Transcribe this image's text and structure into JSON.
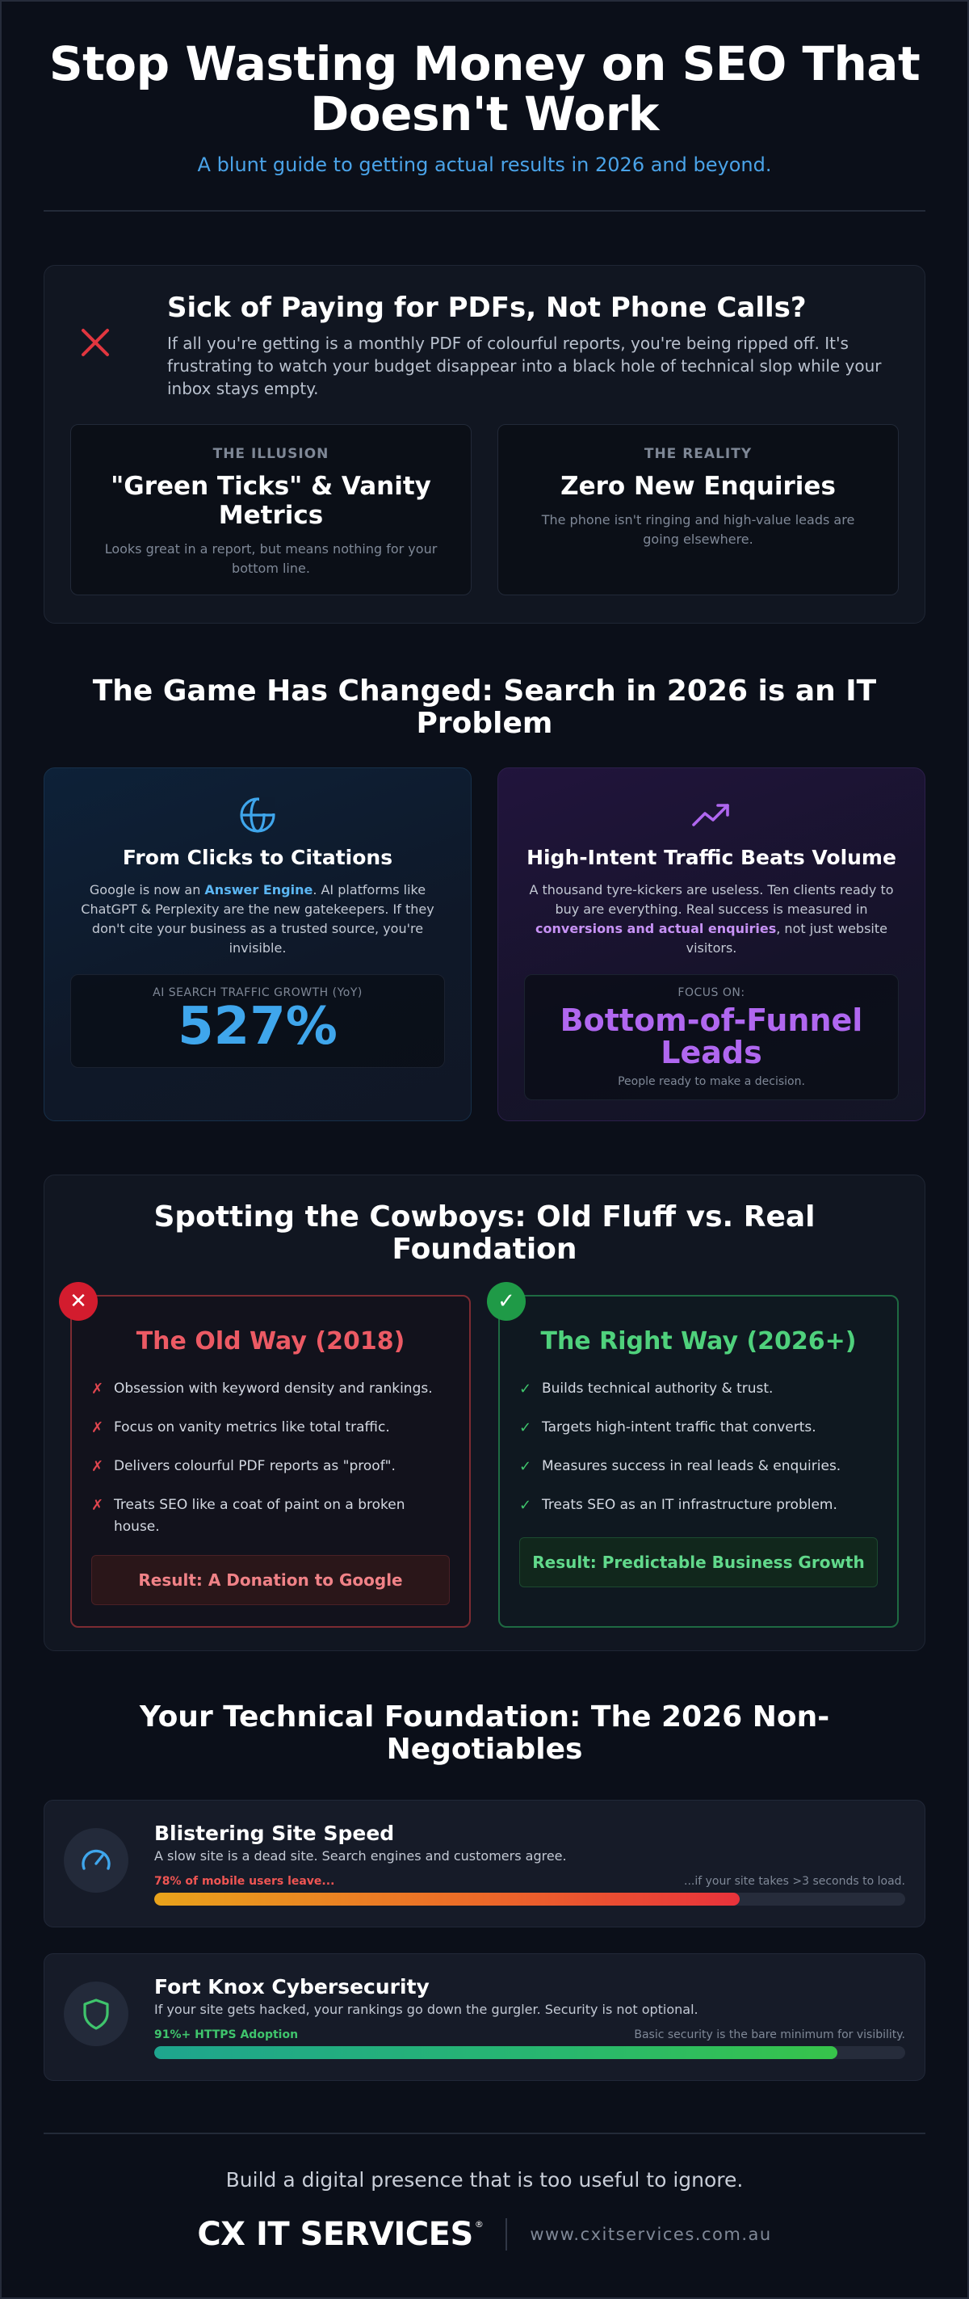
{
  "hero": {
    "title": "Stop Wasting Money on SEO That Doesn't Work",
    "subtitle": "A blunt guide to getting actual results in 2026 and beyond."
  },
  "sick": {
    "icon": "x-icon",
    "title": "Sick of Paying for PDFs, Not Phone Calls?",
    "body": "If all you're getting is a monthly PDF of colourful reports, you're being ripped off. It's frustrating to watch your budget disappear into a black hole of technical slop while your inbox stays empty.",
    "illusion": {
      "eyebrow": "THE ILLUSION",
      "heading": "\"Green Ticks\" & Vanity Metrics",
      "text": "Looks great in a report, but means nothing for your bottom line."
    },
    "reality": {
      "eyebrow": "THE REALITY",
      "heading": "Zero New Enquiries",
      "text": "The phone isn't ringing and high-value leads are going elsewhere."
    }
  },
  "game": {
    "title": "The Game Has Changed: Search in 2026 is an IT Problem",
    "citations": {
      "icon": "globe-icon",
      "heading": "From Clicks to Citations",
      "text_before": "Google is now an ",
      "text_bold": "Answer Engine",
      "text_after": ". AI platforms like ChatGPT & Perplexity are the new gatekeepers. If they don't cite your business as a trusted source, you're invisible.",
      "metric_label": "AI SEARCH TRAFFIC GROWTH (YoY)",
      "metric_value": "527%"
    },
    "intent": {
      "icon": "trending-up-icon",
      "heading": "High-Intent Traffic Beats Volume",
      "text_before": "A thousand tyre-kickers are useless. Ten clients ready to buy are everything. Real success is measured in ",
      "text_bold": "conversions and actual enquiries",
      "text_after": ", not just website visitors.",
      "focus_label": "FOCUS ON:",
      "focus_value": "Bottom-of-Funnel Leads",
      "focus_note": "People ready to make a decision."
    }
  },
  "cowboys": {
    "title": "Spotting the Cowboys: Old Fluff vs. Real Foundation",
    "old": {
      "badge": "✕",
      "heading": "The Old Way (2018)",
      "mark": "✗",
      "items": [
        "Obsession with keyword density and rankings.",
        "Focus on vanity metrics like total traffic.",
        "Delivers colourful PDF reports as \"proof\".",
        "Treats SEO like a coat of paint on a broken house."
      ],
      "result": "Result: A Donation to Google"
    },
    "new": {
      "badge": "✓",
      "heading": "The Right Way (2026+)",
      "mark": "✓",
      "items": [
        "Builds technical authority & trust.",
        "Targets high-intent traffic that converts.",
        "Measures success in real leads & enquiries.",
        "Treats SEO as an IT infrastructure problem."
      ],
      "result": "Result: Predictable Business Growth"
    }
  },
  "foundation": {
    "title": "Your Technical Foundation: The 2026 Non-Negotiables",
    "speed": {
      "icon": "speedometer-icon",
      "heading": "Blistering Site Speed",
      "text": "A slow site is a dead site. Search engines and customers agree.",
      "bar_label": "78% of mobile users leave...",
      "bar_note": "...if your site takes >3 seconds to load.",
      "value": 78
    },
    "security": {
      "icon": "shield-icon",
      "heading": "Fort Knox Cybersecurity",
      "text": "If your site gets hacked, your rankings go down the gurgler. Security is not optional.",
      "bar_label": "91%+ HTTPS Adoption",
      "bar_note": "Basic security is the bare minimum for visibility.",
      "value": 91
    }
  },
  "footer": {
    "tagline": "Build a digital presence that is too useful to ignore.",
    "logo": "CX IT SERVICES",
    "logo_mark": "®",
    "url": "www.cxitservices.com.au"
  },
  "colors": {
    "background": "#0b0f19",
    "accent_blue": "#3fa6ec",
    "accent_purple": "#b067f0",
    "danger": "#ec5a64",
    "success": "#4fd17c"
  }
}
